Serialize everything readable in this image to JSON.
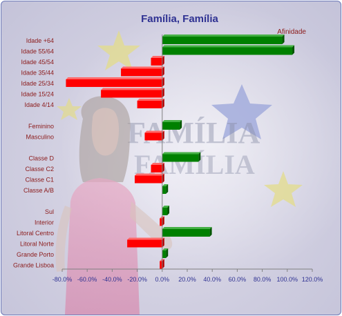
{
  "chart_data": {
    "type": "bar",
    "orientation": "horizontal",
    "title": "Família, Família",
    "legend": {
      "label": "Afinidade",
      "placement": "top-right"
    },
    "categories": [
      "Idade +64",
      "Idade 55/64",
      "Idade 45/54",
      "Idade 35/44",
      "Idade 25/34",
      "Idade 15/24",
      "Idade 4/14",
      "",
      "Feminino",
      "Masculino",
      "",
      "Classe D",
      "Classe C2",
      "Classe C1",
      "Classe A/B",
      "",
      "Sul",
      "Interior",
      "Litoral Centro",
      "Litoral Norte",
      "Grande Porto",
      "Grande Lisboa"
    ],
    "values": [
      96,
      104,
      -9,
      -33,
      -77,
      -49,
      -20,
      null,
      14,
      -14,
      null,
      29,
      -9,
      -22,
      3,
      null,
      4,
      -2,
      38,
      -28,
      3,
      -2
    ],
    "unit": "%",
    "xlim": [
      -80,
      120
    ],
    "xticks": [
      "-80.0%",
      "-60.0%",
      "-40.0%",
      "-20.0%",
      "0.0%",
      "20.0%",
      "40.0%",
      "60.0%",
      "80.0%",
      "100.0%",
      "120.0%"
    ],
    "colors": {
      "positive": "#008000",
      "negative": "#ff0000"
    },
    "grid": false
  }
}
